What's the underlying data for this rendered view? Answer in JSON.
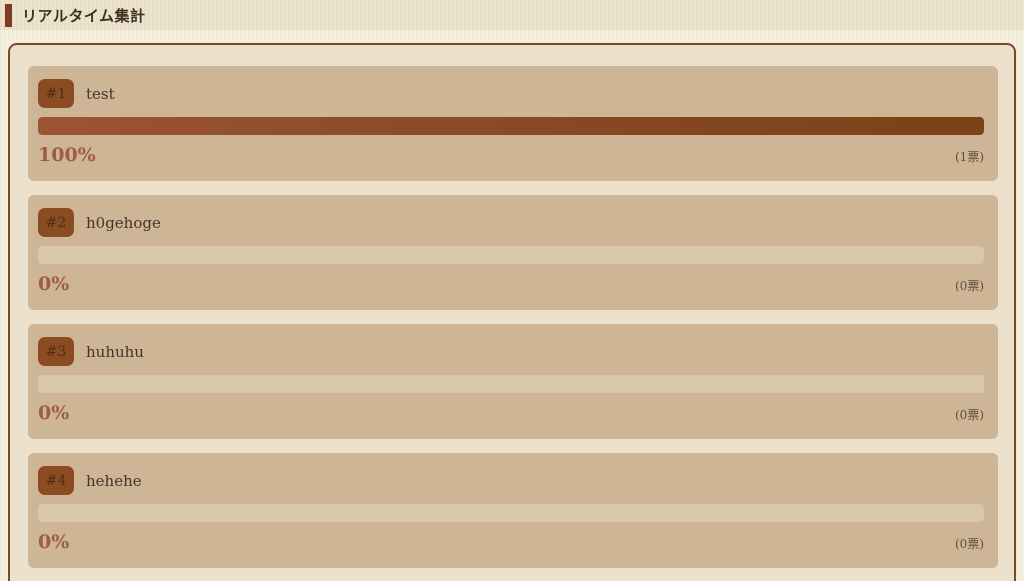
{
  "header": {
    "title": "リアルタイム集計"
  },
  "colors": {
    "accent_bar": "#7d3a28",
    "panel_border": "#7b4a27",
    "panel_bg": "#ece1cc",
    "card_bg": "#cdb596",
    "badge_bg": "#8b4c24",
    "bar_gradient_start": "#9d5433",
    "bar_gradient_end": "#7a4216",
    "bar_track": "#d9c7aa",
    "percent_text": "#a05c3f"
  },
  "chart_data": {
    "type": "bar",
    "title": "リアルタイム集計",
    "categories": [
      "test",
      "h0gehoge",
      "huhuhu",
      "hehehe"
    ],
    "values": [
      100,
      0,
      0,
      0
    ],
    "value_unit": "%",
    "votes": [
      1,
      0,
      0,
      0
    ],
    "xlim": [
      0,
      100
    ]
  },
  "poll": {
    "items": [
      {
        "rank": "#1",
        "label": "test",
        "percent": 100,
        "percent_label": "100%",
        "votes_label": "(1票)"
      },
      {
        "rank": "#2",
        "label": "h0gehoge",
        "percent": 0,
        "percent_label": "0%",
        "votes_label": "(0票)"
      },
      {
        "rank": "#3",
        "label": "huhuhu",
        "percent": 0,
        "percent_label": "0%",
        "votes_label": "(0票)"
      },
      {
        "rank": "#4",
        "label": "hehehe",
        "percent": 0,
        "percent_label": "0%",
        "votes_label": "(0票)"
      }
    ]
  }
}
